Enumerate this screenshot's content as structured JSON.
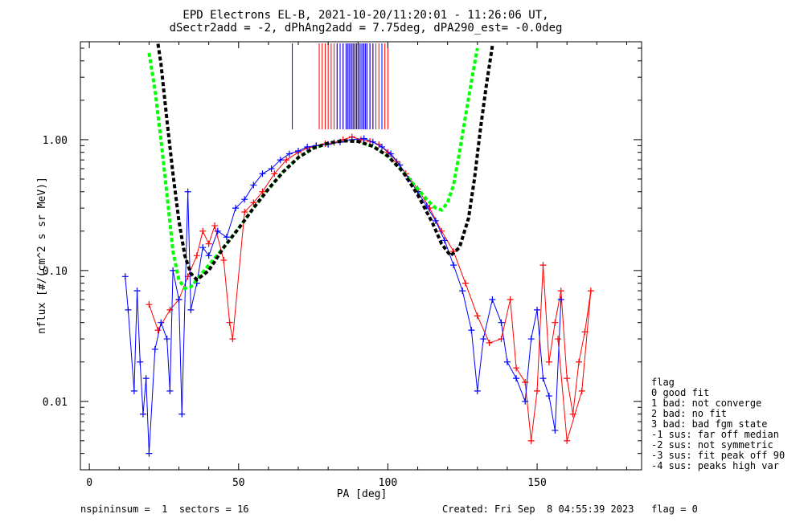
{
  "chart_data": {
    "type": "scatter",
    "title_line1": "EPD Electrons EL-B, 2021-10-20/11:20:01 - 11:26:06 UT,",
    "title_line2": "dSectr2add = -2, dPhAng2add = 7.75deg, dPA290_est=  -0.0deg",
    "xlabel": "PA [deg]",
    "ylabel": "nflux [#/(cm^2 s sr MeV)]",
    "xlim": [
      -3,
      185
    ],
    "ylim": [
      0.003,
      5.6
    ],
    "y_scale": "log",
    "x_ticks": [
      0,
      50,
      100,
      150
    ],
    "x_tick_labels": [
      "0",
      "50",
      "100",
      "150"
    ],
    "y_ticks": [
      0.01,
      0.1,
      1.0
    ],
    "y_tick_labels": [
      "0.01",
      "0.10",
      "1.00"
    ],
    "colors": {
      "series_red": "#ff0000",
      "series_blue": "#0000ff",
      "fit_green": "#00ff00",
      "fit_black": "#000000"
    },
    "series": [
      {
        "color": "#ff0000",
        "points": [
          [
            20,
            0.055
          ],
          [
            23,
            0.035
          ],
          [
            27,
            0.05
          ],
          [
            30,
            0.06
          ],
          [
            33,
            0.09
          ],
          [
            36,
            0.13
          ],
          [
            38,
            0.2
          ],
          [
            40,
            0.16
          ],
          [
            42,
            0.22
          ],
          [
            45,
            0.12
          ],
          [
            47,
            0.04
          ],
          [
            48,
            0.03
          ],
          [
            52,
            0.28
          ],
          [
            55,
            0.33
          ],
          [
            58,
            0.4
          ],
          [
            62,
            0.55
          ],
          [
            66,
            0.7
          ],
          [
            70,
            0.8
          ],
          [
            73,
            0.86
          ],
          [
            76,
            0.9
          ],
          [
            79,
            0.93
          ],
          [
            82,
            0.95
          ],
          [
            85,
            1.0
          ],
          [
            88,
            1.05
          ],
          [
            91,
            1.0
          ],
          [
            94,
            0.97
          ],
          [
            97,
            0.92
          ],
          [
            100,
            0.8
          ],
          [
            103,
            0.68
          ],
          [
            106,
            0.55
          ],
          [
            110,
            0.42
          ],
          [
            114,
            0.3
          ],
          [
            118,
            0.2
          ],
          [
            122,
            0.14
          ],
          [
            126,
            0.08
          ],
          [
            130,
            0.045
          ],
          [
            134,
            0.028
          ],
          [
            138,
            0.03
          ],
          [
            141,
            0.06
          ],
          [
            143,
            0.018
          ],
          [
            146,
            0.014
          ],
          [
            148,
            0.005
          ],
          [
            150,
            0.012
          ],
          [
            152,
            0.11
          ],
          [
            154,
            0.02
          ],
          [
            156,
            0.04
          ],
          [
            158,
            0.07
          ],
          [
            160,
            0.015
          ],
          [
            162,
            0.008
          ],
          [
            164,
            0.02
          ],
          [
            166,
            0.034
          ],
          [
            168,
            0.07
          ],
          [
            165,
            0.012
          ],
          [
            160,
            0.005
          ],
          [
            157,
            0.03
          ]
        ]
      },
      {
        "color": "#0000ff",
        "points": [
          [
            12,
            0.09
          ],
          [
            13,
            0.05
          ],
          [
            15,
            0.012
          ],
          [
            16,
            0.07
          ],
          [
            17,
            0.02
          ],
          [
            18,
            0.008
          ],
          [
            19,
            0.015
          ],
          [
            20,
            0.004
          ],
          [
            22,
            0.025
          ],
          [
            24,
            0.04
          ],
          [
            26,
            0.03
          ],
          [
            27,
            0.012
          ],
          [
            28,
            0.1
          ],
          [
            30,
            0.06
          ],
          [
            31,
            0.008
          ],
          [
            33,
            0.4
          ],
          [
            34,
            0.05
          ],
          [
            36,
            0.08
          ],
          [
            38,
            0.15
          ],
          [
            40,
            0.13
          ],
          [
            43,
            0.2
          ],
          [
            46,
            0.18
          ],
          [
            49,
            0.3
          ],
          [
            52,
            0.35
          ],
          [
            55,
            0.45
          ],
          [
            58,
            0.55
          ],
          [
            61,
            0.6
          ],
          [
            64,
            0.7
          ],
          [
            67,
            0.78
          ],
          [
            70,
            0.82
          ],
          [
            73,
            0.88
          ],
          [
            76,
            0.9
          ],
          [
            80,
            0.92
          ],
          [
            84,
            0.96
          ],
          [
            88,
            1.0
          ],
          [
            92,
            1.02
          ],
          [
            95,
            0.96
          ],
          [
            98,
            0.88
          ],
          [
            101,
            0.78
          ],
          [
            104,
            0.64
          ],
          [
            107,
            0.5
          ],
          [
            110,
            0.4
          ],
          [
            113,
            0.31
          ],
          [
            116,
            0.24
          ],
          [
            119,
            0.17
          ],
          [
            122,
            0.11
          ],
          [
            125,
            0.07
          ],
          [
            128,
            0.035
          ],
          [
            130,
            0.012
          ],
          [
            132,
            0.03
          ],
          [
            135,
            0.06
          ],
          [
            138,
            0.04
          ],
          [
            140,
            0.02
          ],
          [
            143,
            0.015
          ],
          [
            146,
            0.01
          ],
          [
            148,
            0.03
          ],
          [
            150,
            0.05
          ],
          [
            152,
            0.015
          ],
          [
            154,
            0.011
          ],
          [
            156,
            0.006
          ],
          [
            158,
            0.06
          ]
        ]
      }
    ],
    "fit_green": {
      "color": "#00ff00",
      "x": [
        20,
        22,
        24,
        26,
        28,
        30,
        32,
        34,
        36,
        40,
        45,
        50,
        55,
        60,
        65,
        70,
        75,
        80,
        85,
        90,
        95,
        100,
        105,
        110,
        113,
        116,
        118,
        120,
        122,
        124,
        126,
        128,
        130
      ],
      "y": [
        4.6,
        2.4,
        1.0,
        0.38,
        0.14,
        0.085,
        0.073,
        0.075,
        0.085,
        0.11,
        0.15,
        0.21,
        0.3,
        0.42,
        0.57,
        0.73,
        0.86,
        0.94,
        0.98,
        0.97,
        0.89,
        0.75,
        0.57,
        0.42,
        0.35,
        0.3,
        0.29,
        0.33,
        0.45,
        0.8,
        1.5,
        2.8,
        5.0
      ]
    },
    "fit_black": {
      "color": "#000000",
      "x": [
        23,
        24,
        26,
        28,
        30,
        32,
        34,
        36,
        40,
        45,
        50,
        55,
        60,
        65,
        70,
        75,
        80,
        85,
        90,
        95,
        100,
        105,
        110,
        115,
        118,
        121,
        124,
        127,
        129,
        131,
        133,
        135
      ],
      "y": [
        5.4,
        3.8,
        1.4,
        0.55,
        0.24,
        0.13,
        0.095,
        0.085,
        0.1,
        0.15,
        0.21,
        0.3,
        0.42,
        0.57,
        0.73,
        0.86,
        0.94,
        0.98,
        0.97,
        0.89,
        0.75,
        0.57,
        0.38,
        0.23,
        0.16,
        0.13,
        0.15,
        0.25,
        0.5,
        1.2,
        2.6,
        5.2
      ]
    },
    "vertical_lines": {
      "red": [
        77,
        78,
        79,
        80,
        81,
        82,
        83,
        84,
        85,
        86,
        87,
        88,
        89,
        90,
        91,
        92,
        93,
        94,
        95,
        96,
        97,
        98,
        99,
        100
      ],
      "blue": [
        68,
        83,
        84,
        85,
        86,
        86.5,
        87,
        87.5,
        88,
        88.5,
        89,
        89.5,
        90,
        90.5,
        91,
        91.5,
        92,
        92.5,
        93,
        94,
        95,
        98
      ]
    },
    "legend": {
      "heading": "flag",
      "items": [
        " 0 good fit",
        " 1 bad: not converge",
        " 2 bad: no fit",
        " 3 bad: bad fgm state",
        "-1 sus: far off median",
        "-2 sus: not symmetric",
        "-3 sus: fit peak off 90",
        "-4 sus: peaks high var"
      ]
    },
    "footer_left": "nspininsum =  1  sectors = 16",
    "footer_right": "Created: Fri Sep  8 04:55:39 2023   flag = 0"
  }
}
